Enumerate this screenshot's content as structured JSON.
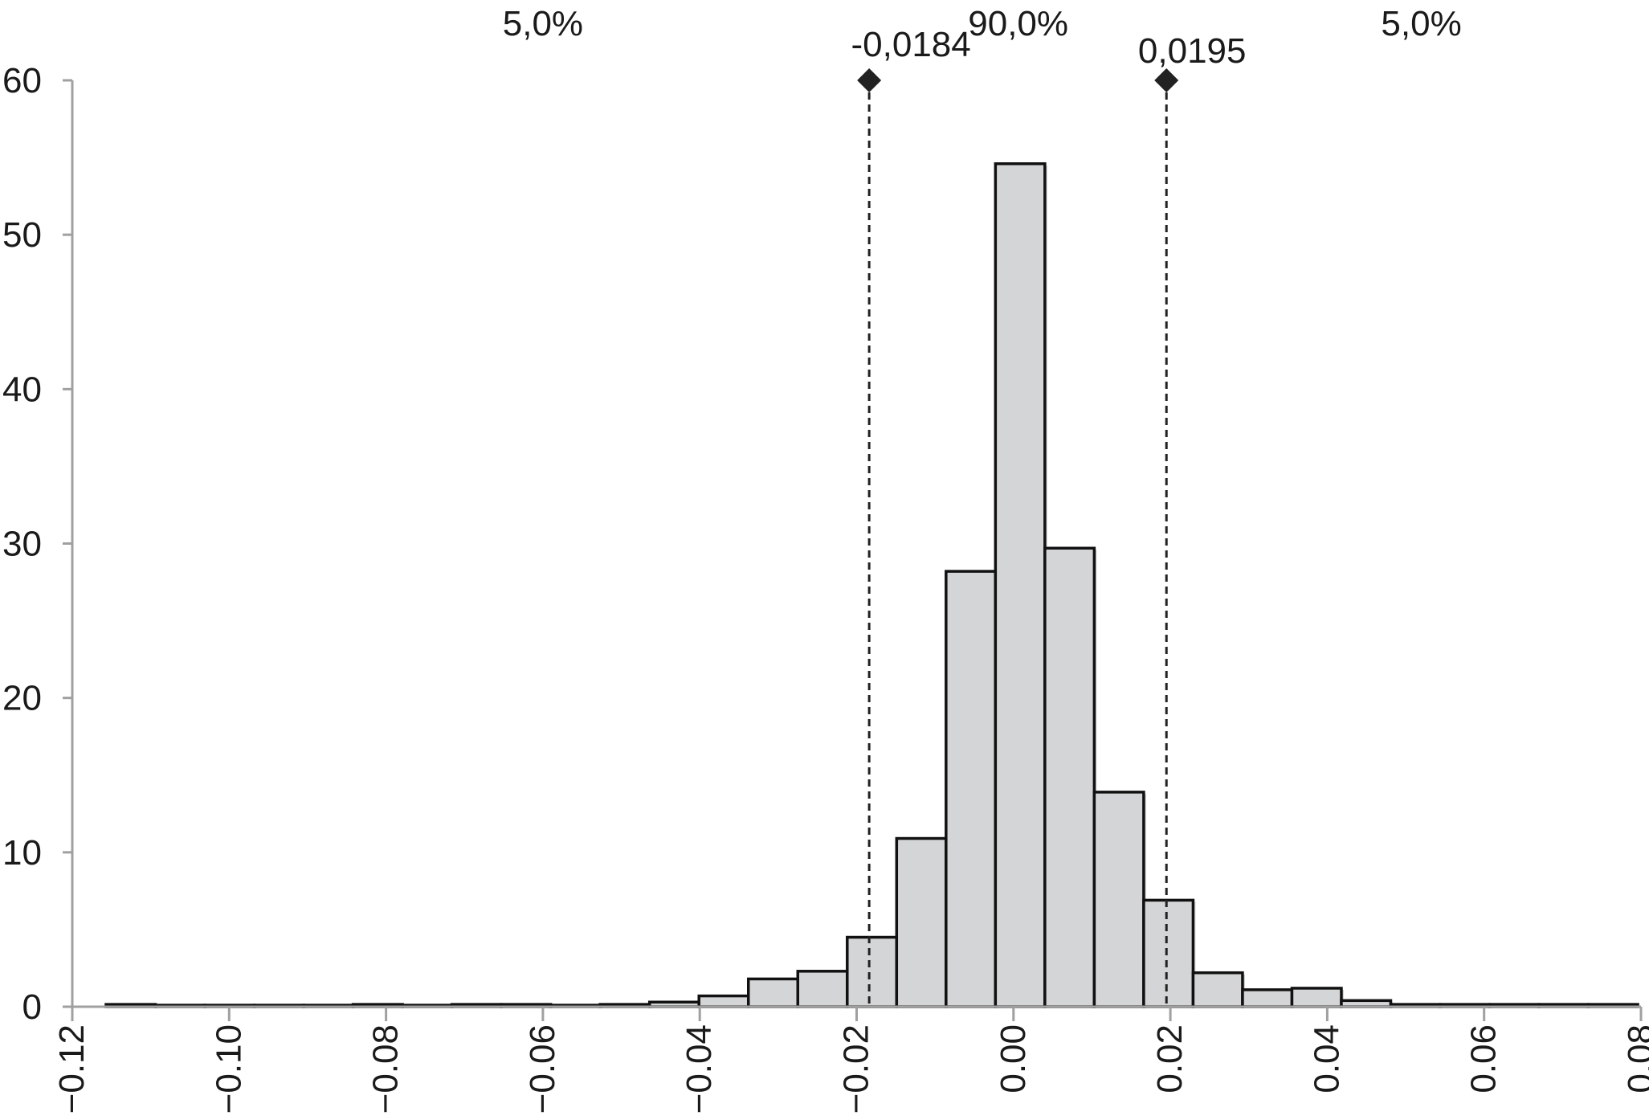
{
  "chart_data": {
    "type": "bar",
    "title": "",
    "xlabel": "",
    "ylabel": "",
    "xlim": [
      -0.12,
      0.08
    ],
    "ylim": [
      0,
      60
    ],
    "grid": false,
    "bin_width": 0.0063,
    "bins": [
      {
        "start": -0.1157,
        "end": -0.1094,
        "value": 0.15
      },
      {
        "start": -0.1094,
        "end": -0.1031,
        "value": 0.1
      },
      {
        "start": -0.1031,
        "end": -0.0968,
        "value": 0.1
      },
      {
        "start": -0.0968,
        "end": -0.0905,
        "value": 0.1
      },
      {
        "start": -0.0905,
        "end": -0.0842,
        "value": 0.1
      },
      {
        "start": -0.0842,
        "end": -0.0779,
        "value": 0.15
      },
      {
        "start": -0.0779,
        "end": -0.0716,
        "value": 0.1
      },
      {
        "start": -0.0716,
        "end": -0.0653,
        "value": 0.15
      },
      {
        "start": -0.0653,
        "end": -0.059,
        "value": 0.15
      },
      {
        "start": -0.059,
        "end": -0.0527,
        "value": 0.1
      },
      {
        "start": -0.0527,
        "end": -0.0464,
        "value": 0.15
      },
      {
        "start": -0.0464,
        "end": -0.0401,
        "value": 0.3
      },
      {
        "start": -0.0401,
        "end": -0.0338,
        "value": 0.7
      },
      {
        "start": -0.0338,
        "end": -0.0275,
        "value": 1.8
      },
      {
        "start": -0.0275,
        "end": -0.0212,
        "value": 2.3
      },
      {
        "start": -0.0212,
        "end": -0.0149,
        "value": 4.5
      },
      {
        "start": -0.0149,
        "end": -0.0086,
        "value": 10.9
      },
      {
        "start": -0.0086,
        "end": -0.0023,
        "value": 28.2
      },
      {
        "start": -0.0023,
        "end": 0.004,
        "value": 54.6
      },
      {
        "start": 0.004,
        "end": 0.0103,
        "value": 29.7
      },
      {
        "start": 0.0103,
        "end": 0.0166,
        "value": 13.9
      },
      {
        "start": 0.0166,
        "end": 0.0229,
        "value": 6.9
      },
      {
        "start": 0.0229,
        "end": 0.0292,
        "value": 2.2
      },
      {
        "start": 0.0292,
        "end": 0.0355,
        "value": 1.1
      },
      {
        "start": 0.0355,
        "end": 0.0418,
        "value": 1.2
      },
      {
        "start": 0.0418,
        "end": 0.0481,
        "value": 0.4
      },
      {
        "start": 0.0481,
        "end": 0.0544,
        "value": 0.15
      },
      {
        "start": 0.0544,
        "end": 0.0607,
        "value": 0.15
      },
      {
        "start": 0.0607,
        "end": 0.067,
        "value": 0.15
      },
      {
        "start": 0.067,
        "end": 0.0733,
        "value": 0.15
      },
      {
        "start": 0.0733,
        "end": 0.0796,
        "value": 0.15
      }
    ],
    "x_ticks": [
      {
        "value": -0.12,
        "label": "−0.12"
      },
      {
        "value": -0.1,
        "label": "−0.10"
      },
      {
        "value": -0.08,
        "label": "−0.08"
      },
      {
        "value": -0.06,
        "label": "−0.06"
      },
      {
        "value": -0.04,
        "label": "−0.04"
      },
      {
        "value": -0.02,
        "label": "−0.02"
      },
      {
        "value": 0.0,
        "label": "0.00"
      },
      {
        "value": 0.02,
        "label": "0.02"
      },
      {
        "value": 0.04,
        "label": "0.04"
      },
      {
        "value": 0.06,
        "label": "0.06"
      },
      {
        "value": 0.08,
        "label": "0.08"
      }
    ],
    "y_ticks": [
      {
        "value": 0,
        "label": "0"
      },
      {
        "value": 10,
        "label": "10"
      },
      {
        "value": 20,
        "label": "20"
      },
      {
        "value": 30,
        "label": "30"
      },
      {
        "value": 40,
        "label": "40"
      },
      {
        "value": 50,
        "label": "50"
      },
      {
        "value": 60,
        "label": "60"
      }
    ],
    "markers": [
      {
        "value": -0.0184,
        "label": "-0,0184"
      },
      {
        "value": 0.0195,
        "label": "0,0195"
      }
    ],
    "regions": [
      {
        "label": "5,0%",
        "x": -0.06
      },
      {
        "label": "90,0%",
        "x": 0.0006
      },
      {
        "label": "5,0%",
        "x": 0.052
      }
    ],
    "colors": {
      "bar_fill": "#d4d5d6",
      "bar_stroke": "#111111",
      "axis": "#a0a0a0",
      "marker": "#222222",
      "text": "#1a1a1a"
    }
  }
}
